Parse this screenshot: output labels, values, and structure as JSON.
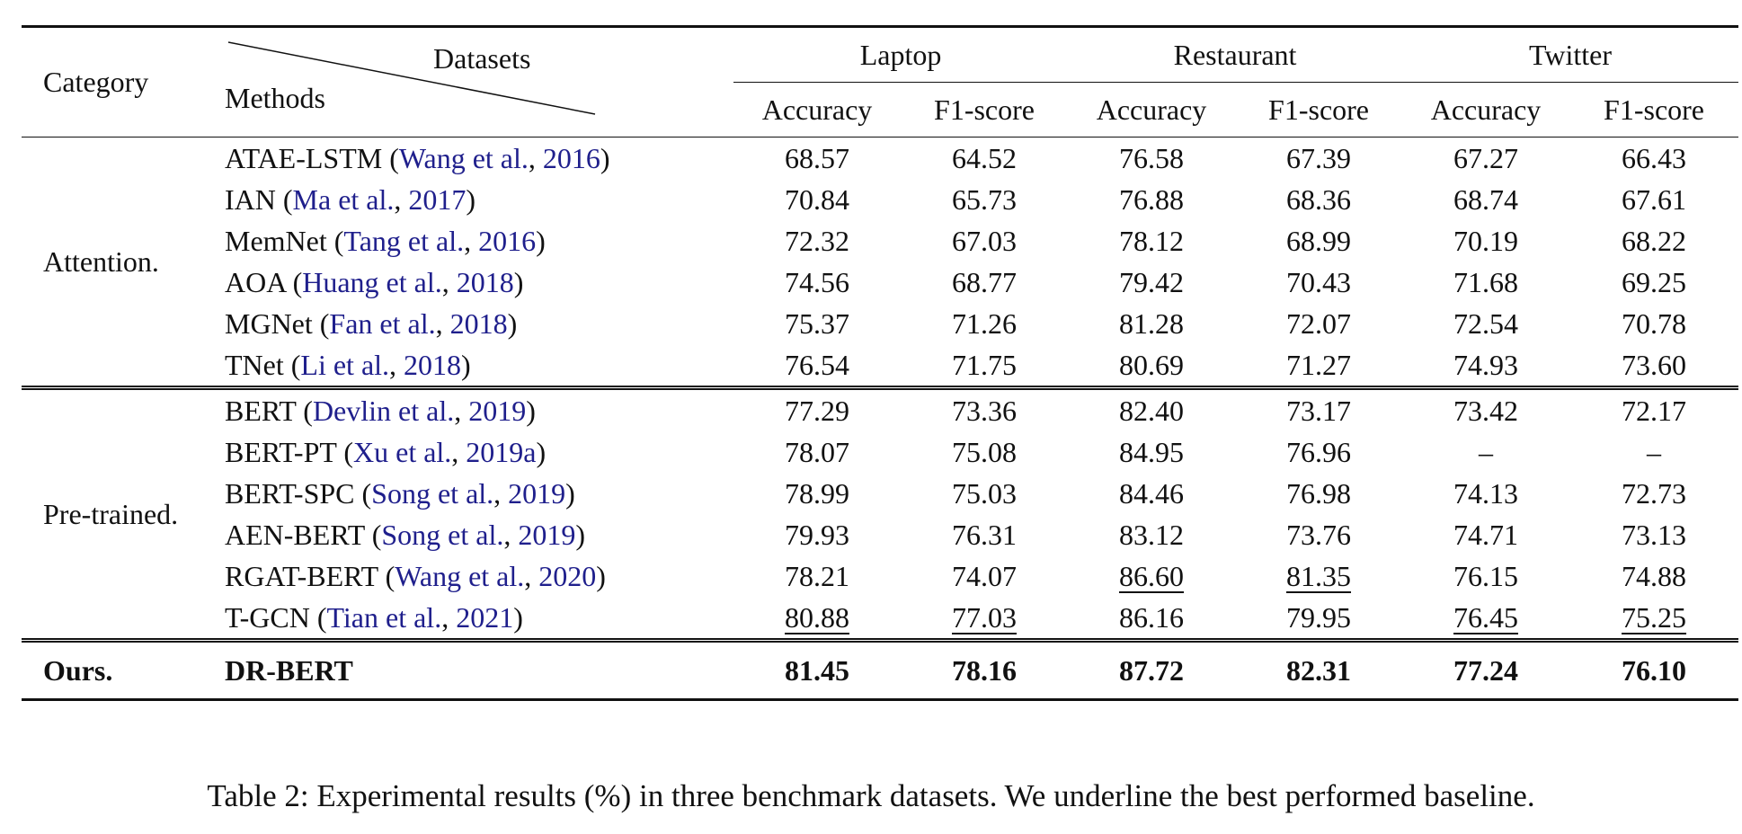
{
  "header": {
    "category": "Category",
    "datasets": "Datasets",
    "methods": "Methods",
    "groups": [
      "Laptop",
      "Restaurant",
      "Twitter"
    ],
    "metrics": [
      "Accuracy",
      "F1-score",
      "Accuracy",
      "F1-score",
      "Accuracy",
      "F1-score"
    ]
  },
  "sections": [
    {
      "category": "Attention.",
      "rows": [
        {
          "method": "ATAE-LSTM",
          "cite_author": "Wang et al.",
          "cite_year": "2016",
          "values": [
            "68.57",
            "64.52",
            "76.58",
            "67.39",
            "67.27",
            "66.43"
          ]
        },
        {
          "method": "IAN",
          "cite_author": "Ma et al.",
          "cite_year": "2017",
          "values": [
            "70.84",
            "65.73",
            "76.88",
            "68.36",
            "68.74",
            "67.61"
          ]
        },
        {
          "method": "MemNet",
          "cite_author": "Tang et al.",
          "cite_year": "2016",
          "values": [
            "72.32",
            "67.03",
            "78.12",
            "68.99",
            "70.19",
            "68.22"
          ]
        },
        {
          "method": "AOA",
          "cite_author": "Huang et al.",
          "cite_year": "2018",
          "values": [
            "74.56",
            "68.77",
            "79.42",
            "70.43",
            "71.68",
            "69.25"
          ]
        },
        {
          "method": "MGNet",
          "cite_author": "Fan et al.",
          "cite_year": "2018",
          "values": [
            "75.37",
            "71.26",
            "81.28",
            "72.07",
            "72.54",
            "70.78"
          ]
        },
        {
          "method": "TNet",
          "cite_author": "Li et al.",
          "cite_year": "2018",
          "values": [
            "76.54",
            "71.75",
            "80.69",
            "71.27",
            "74.93",
            "73.60"
          ]
        }
      ]
    },
    {
      "category": "Pre-trained.",
      "rows": [
        {
          "method": "BERT",
          "cite_author": "Devlin et al.",
          "cite_year": "2019",
          "values": [
            "77.29",
            "73.36",
            "82.40",
            "73.17",
            "73.42",
            "72.17"
          ]
        },
        {
          "method": "BERT-PT",
          "cite_author": "Xu et al.",
          "cite_year": "2019a",
          "values": [
            "78.07",
            "75.08",
            "84.95",
            "76.96",
            "–",
            "–"
          ]
        },
        {
          "method": "BERT-SPC",
          "cite_author": "Song et al.",
          "cite_year": "2019",
          "values": [
            "78.99",
            "75.03",
            "84.46",
            "76.98",
            "74.13",
            "72.73"
          ]
        },
        {
          "method": "AEN-BERT",
          "cite_author": "Song et al.",
          "cite_year": "2019",
          "values": [
            "79.93",
            "76.31",
            "83.12",
            "73.76",
            "74.71",
            "73.13"
          ]
        },
        {
          "method": "RGAT-BERT",
          "cite_author": "Wang et al.",
          "cite_year": "2020",
          "values": [
            "78.21",
            "74.07",
            "86.60",
            "81.35",
            "76.15",
            "74.88"
          ]
        },
        {
          "method": "T-GCN",
          "cite_author": "Tian et al.",
          "cite_year": "2021",
          "values": [
            "80.88",
            "77.03",
            "86.16",
            "79.95",
            "76.45",
            "75.25"
          ]
        }
      ]
    }
  ],
  "ours": {
    "category": "Ours.",
    "method": "DR-BERT",
    "values": [
      "81.45",
      "78.16",
      "87.72",
      "82.31",
      "77.24",
      "76.10"
    ]
  },
  "underlined": {
    "Restaurant-Accuracy": "RGAT-BERT",
    "Restaurant-F1-score": "RGAT-BERT",
    "Laptop-Accuracy": "T-GCN",
    "Laptop-F1-score": "T-GCN",
    "Twitter-Accuracy": "T-GCN",
    "Twitter-F1-score": "T-GCN"
  },
  "caption": "Table 2: Experimental results (%) in three benchmark datasets. We underline the best performed baseline.",
  "colors": {
    "citation": "#1f1f8c",
    "text": "#111111"
  }
}
